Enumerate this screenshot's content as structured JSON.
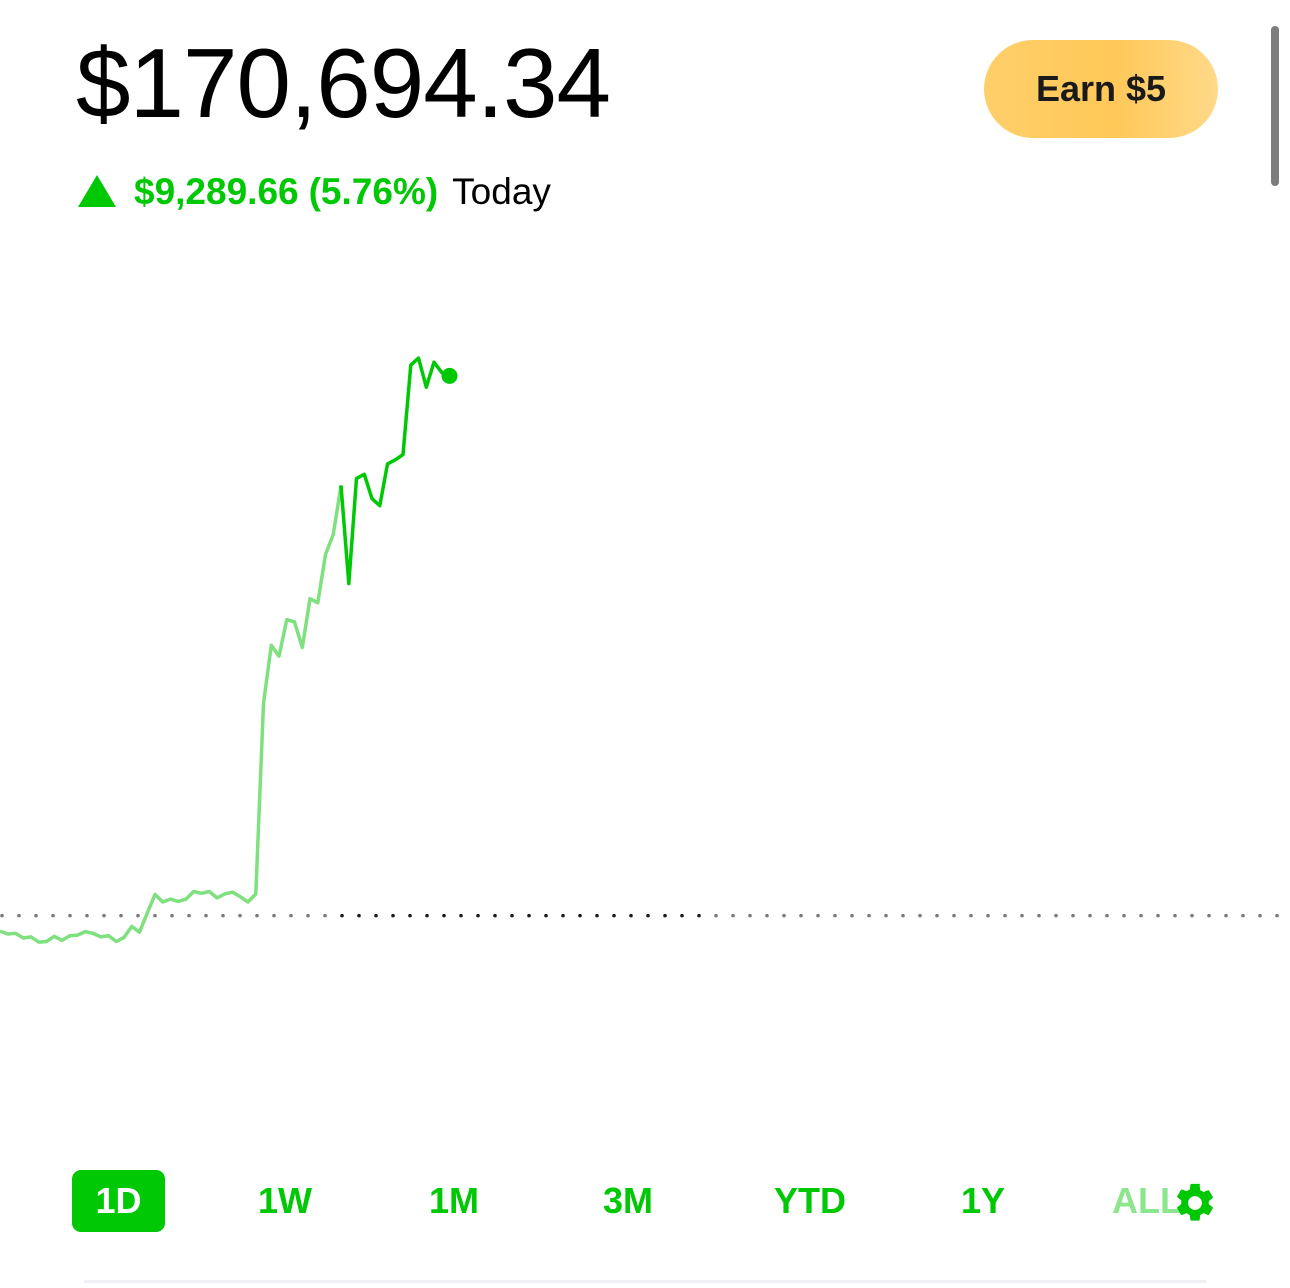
{
  "portfolio": {
    "value": "$170,694.34",
    "change_amount": "$9,289.66",
    "change_percent": "(5.76%)",
    "change_period": "Today",
    "direction_icon": "up-triangle-icon"
  },
  "earn_button": {
    "label": "Earn $5"
  },
  "range_tabs": [
    {
      "label": "1D",
      "active": true
    },
    {
      "label": "1W",
      "active": false
    },
    {
      "label": "1M",
      "active": false
    },
    {
      "label": "3M",
      "active": false
    },
    {
      "label": "YTD",
      "active": false
    },
    {
      "label": "1Y",
      "active": false
    },
    {
      "label": "ALL",
      "active": false
    }
  ],
  "settings_icon": "gear-icon",
  "colors": {
    "accent": "#00c805",
    "accent_light": "#7ee07f",
    "earn_button": "#ffc857",
    "baseline": "#555555"
  },
  "chart_data": {
    "type": "line",
    "title": "",
    "xlabel": "",
    "ylabel": "",
    "baseline_value": 161404.68,
    "grid": false,
    "legend": "none",
    "ylim": [
      157200,
      172000
    ],
    "series": [
      {
        "values": [
          161140,
          161090,
          161100,
          161020,
          161040,
          160950,
          160960,
          161050,
          160980,
          161060,
          161070,
          161130,
          161100,
          161040,
          161060,
          160960,
          161030,
          161220,
          161120,
          161450,
          161770,
          161640,
          161690,
          161650,
          161690,
          161820,
          161790,
          161820,
          161710,
          161780,
          161810,
          161730,
          161640,
          161780,
          165060,
          166060,
          165870,
          166500,
          166460,
          166020,
          166860,
          166790,
          167620,
          167970,
          168810,
          167120,
          168930,
          169000,
          168580,
          168460,
          169180,
          169250,
          169340,
          170880,
          171000,
          170500,
          170930,
          170750,
          170694.34
        ]
      }
    ],
    "endpoint": 170694.34
  }
}
